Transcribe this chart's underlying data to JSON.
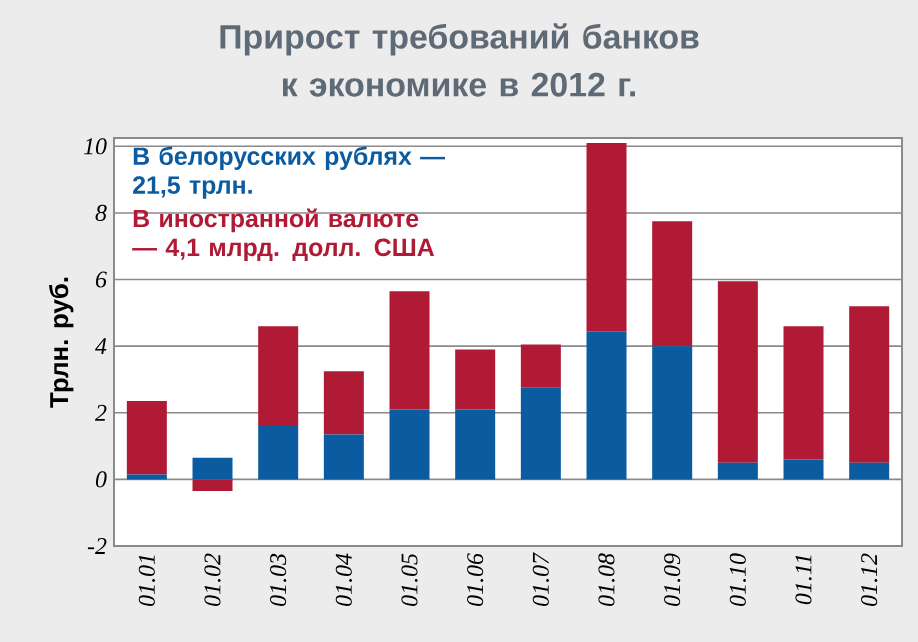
{
  "chart_data": {
    "type": "bar",
    "title": "Прирост требований банков к экономике в 2012 г.",
    "ylabel": "Трлн. руб.",
    "categories": [
      "01.01",
      "01.02",
      "01.03",
      "01.04",
      "01.05",
      "01.06",
      "01.07",
      "01.08",
      "01.09",
      "01.10",
      "01.11",
      "01.12"
    ],
    "series": [
      {
        "name": "В белорусских рублях — 21,5 трлн.",
        "color": "#0b5ba0",
        "values": [
          0.15,
          0.65,
          1.6,
          1.35,
          2.1,
          2.1,
          2.75,
          4.45,
          4.0,
          0.5,
          0.6,
          0.5
        ]
      },
      {
        "name": "В иностранной валюте — 4,1 млрд. долл. США",
        "color": "#b01a35",
        "values": [
          2.2,
          -0.35,
          3.0,
          1.9,
          3.55,
          1.8,
          1.3,
          5.65,
          3.75,
          5.45,
          4.0,
          4.7
        ]
      }
    ],
    "stacked": true,
    "ylim": [
      -2,
      10.25
    ],
    "yticks": [
      -2,
      0,
      2,
      4,
      6,
      8,
      10
    ],
    "grid": "y",
    "legend": "top left"
  }
}
